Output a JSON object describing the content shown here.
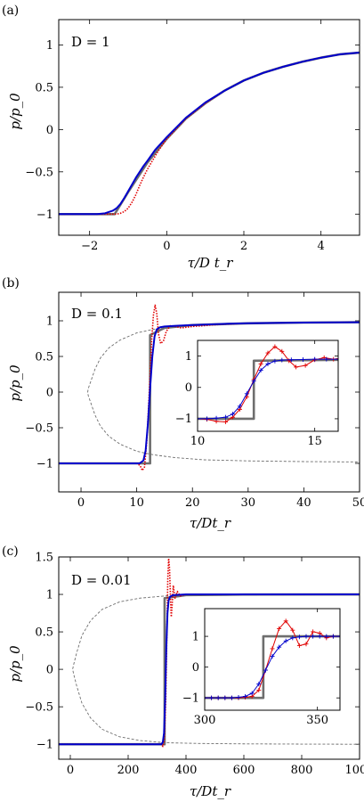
{
  "chart_data": [
    {
      "type": "line",
      "panel_label": "(a)",
      "annotation": "D = 1",
      "xlabel": "τ/D t_r",
      "ylabel": "p/p_0",
      "xlim": [
        -2.8,
        5
      ],
      "ylim": [
        -1.25,
        1.3
      ],
      "xticks": [
        -2,
        0,
        2,
        4
      ],
      "yticks": [
        -1,
        -0.5,
        0,
        0.5,
        1
      ],
      "xtick_labels": [
        "−2",
        "0",
        "2",
        "4"
      ],
      "ytick_labels": [
        "−1",
        "−0.5",
        "0",
        "0.5",
        "1"
      ],
      "grid": false,
      "series": [
        {
          "style": "gray-step",
          "color": "#6e6e6e",
          "x": [
            -2.8,
            -1.35,
            -1.35,
            -1.0,
            -0.5,
            0,
            0.5,
            1,
            1.5,
            2,
            2.5,
            3,
            3.5,
            4,
            4.5,
            5
          ],
          "y": [
            -1,
            -1,
            -1,
            -0.74,
            -0.39,
            -0.11,
            0.13,
            0.31,
            0.46,
            0.58,
            0.67,
            0.74,
            0.8,
            0.85,
            0.89,
            0.91
          ]
        },
        {
          "style": "red-dotted",
          "color": "#e00000",
          "x": [
            -2.8,
            -1.6,
            -1.3,
            -1.2,
            -1.1,
            -1.0,
            -0.9,
            -0.8,
            -0.7,
            -0.6,
            -0.5,
            -0.4,
            -0.2,
            0,
            0.5,
            1,
            1.5,
            2,
            2.5,
            3,
            3.5,
            4,
            4.5,
            5
          ],
          "y": [
            -1,
            -1,
            -1,
            -0.99,
            -0.97,
            -0.93,
            -0.86,
            -0.77,
            -0.66,
            -0.56,
            -0.47,
            -0.39,
            -0.24,
            -0.11,
            0.13,
            0.31,
            0.46,
            0.58,
            0.67,
            0.74,
            0.8,
            0.85,
            0.89,
            0.91
          ]
        },
        {
          "style": "blue-solid",
          "color": "#0000cc",
          "x": [
            -2.8,
            -1.8,
            -1.6,
            -1.4,
            -1.3,
            -1.2,
            -1.1,
            -1.0,
            -0.9,
            -0.8,
            -0.7,
            -0.6,
            -0.5,
            -0.3,
            0,
            0.5,
            1,
            1.5,
            2,
            2.5,
            3,
            3.5,
            4,
            4.5,
            5
          ],
          "y": [
            -1,
            -1,
            -0.99,
            -0.96,
            -0.93,
            -0.88,
            -0.81,
            -0.73,
            -0.65,
            -0.57,
            -0.5,
            -0.43,
            -0.37,
            -0.24,
            -0.09,
            0.14,
            0.32,
            0.46,
            0.58,
            0.67,
            0.74,
            0.8,
            0.85,
            0.89,
            0.91
          ]
        }
      ]
    },
    {
      "type": "line",
      "panel_label": "(b)",
      "annotation": "D = 0.1",
      "xlabel": "τ/Dt_r",
      "ylabel": "p/p_0",
      "xlim": [
        -4,
        50
      ],
      "ylim": [
        -1.4,
        1.4
      ],
      "xticks": [
        0,
        10,
        20,
        30,
        40,
        50
      ],
      "yticks": [
        -1,
        -0.5,
        0,
        0.5,
        1
      ],
      "xtick_labels": [
        "0",
        "10",
        "20",
        "30",
        "40",
        "50"
      ],
      "ytick_labels": [
        "−1",
        "−0.5",
        "0",
        "0.5",
        "1"
      ],
      "grid": false,
      "series": [
        {
          "style": "dashed",
          "color": "#6e6e6e",
          "x": [
            50,
            40,
            30,
            22,
            17,
            13,
            10,
            7,
            5,
            3.5,
            2.5,
            1.8,
            1.3,
            1.2,
            1.3,
            1.8,
            2.5,
            3.5,
            5,
            7,
            10,
            13,
            17,
            22,
            30,
            40,
            50
          ],
          "y": [
            0.98,
            0.975,
            0.965,
            0.95,
            0.92,
            0.88,
            0.83,
            0.73,
            0.62,
            0.48,
            0.32,
            0.16,
            0.05,
            0,
            -0.05,
            -0.16,
            -0.32,
            -0.48,
            -0.62,
            -0.73,
            -0.83,
            -0.88,
            -0.92,
            -0.95,
            -0.965,
            -0.975,
            -0.98
          ]
        },
        {
          "style": "gray-step",
          "color": "#6e6e6e",
          "x": [
            -4,
            12.4,
            12.4,
            15,
            20,
            30,
            40,
            50
          ],
          "y": [
            -1,
            -1,
            0.8,
            0.9,
            0.94,
            0.965,
            0.975,
            0.98
          ]
        },
        {
          "style": "red-dotted",
          "color": "#e00000",
          "x": [
            -4,
            10,
            10.6,
            11.0,
            11.4,
            11.8,
            12.1,
            12.4,
            12.7,
            13.0,
            13.3,
            13.6,
            13.9,
            14.3,
            14.8,
            15.3,
            16.0,
            17,
            18,
            20,
            25,
            30,
            40,
            50
          ],
          "y": [
            -1,
            -1,
            -1.03,
            -1.1,
            -1.05,
            -0.7,
            -0.25,
            0.25,
            0.75,
            1.08,
            1.22,
            1.1,
            0.82,
            0.68,
            0.72,
            0.85,
            0.93,
            0.92,
            0.9,
            0.92,
            0.95,
            0.965,
            0.975,
            0.98
          ]
        },
        {
          "style": "blue-solid",
          "color": "#0000cc",
          "x": [
            -4,
            10.5,
            11.2,
            11.6,
            12.0,
            12.4,
            12.8,
            13.2,
            13.6,
            14.2,
            15,
            17,
            20,
            25,
            30,
            40,
            50
          ],
          "y": [
            -1,
            -1,
            -0.96,
            -0.82,
            -0.45,
            0.05,
            0.5,
            0.78,
            0.88,
            0.91,
            0.92,
            0.93,
            0.94,
            0.955,
            0.965,
            0.975,
            0.98
          ]
        }
      ],
      "inset": {
        "xlim": [
          10,
          16
        ],
        "ylim": [
          -1.4,
          1.5
        ],
        "xticks": [
          10,
          15
        ],
        "yticks": [
          -1,
          0,
          1
        ],
        "xtick_labels": [
          "10",
          "15"
        ],
        "ytick_labels": [
          "−1",
          "0",
          "1"
        ],
        "series": [
          {
            "style": "gray-step",
            "color": "#6e6e6e",
            "x": [
              10,
              12.4,
              12.4,
              16
            ],
            "y": [
              -1,
              -1,
              0.85,
              0.88
            ]
          },
          {
            "style": "red-markers",
            "color": "#e00000",
            "x": [
              10,
              10.4,
              10.8,
              11.2,
              11.5,
              11.8,
              12.1,
              12.4,
              12.7,
              13.0,
              13.3,
              13.6,
              13.9,
              14.2,
              14.6,
              15.0,
              15.4,
              15.8,
              16
            ],
            "y": [
              -1.0,
              -1.02,
              -1.08,
              -1.1,
              -0.95,
              -0.7,
              -0.3,
              0.25,
              0.75,
              1.1,
              1.3,
              1.15,
              0.85,
              0.65,
              0.7,
              0.88,
              0.95,
              0.9,
              0.92
            ]
          },
          {
            "style": "blue-markers",
            "color": "#0000cc",
            "x": [
              10,
              10.4,
              10.8,
              11.2,
              11.5,
              11.8,
              12.1,
              12.4,
              12.7,
              13.0,
              13.3,
              13.6,
              14.0,
              14.5,
              15.0,
              15.5,
              16
            ],
            "y": [
              -1.0,
              -1.0,
              -0.98,
              -0.95,
              -0.85,
              -0.6,
              -0.2,
              0.2,
              0.55,
              0.75,
              0.84,
              0.87,
              0.88,
              0.89,
              0.9,
              0.9,
              0.9
            ]
          }
        ]
      }
    },
    {
      "type": "line",
      "panel_label": "(c)",
      "annotation": "D = 0.01",
      "xlabel": "τ/Dt_r",
      "ylabel": "p/p_0",
      "xlim": [
        -40,
        1000
      ],
      "ylim": [
        -1.2,
        1.5
      ],
      "xticks": [
        0,
        200,
        400,
        600,
        800,
        1000
      ],
      "yticks": [
        -1,
        -0.5,
        0,
        0.5,
        1,
        1.5
      ],
      "xtick_labels": [
        "0",
        "200",
        "400",
        "600",
        "800",
        "1000"
      ],
      "ytick_labels": [
        "−1",
        "−0.5",
        "0",
        "0.5",
        "1",
        "1.5"
      ],
      "grid": false,
      "series": [
        {
          "style": "dashed",
          "color": "#6e6e6e",
          "x": [
            1000,
            800,
            600,
            450,
            330,
            240,
            170,
            110,
            70,
            40,
            22,
            12,
            8,
            12,
            22,
            40,
            70,
            110,
            170,
            240,
            330,
            450,
            600,
            800,
            1000
          ],
          "y": [
            1.0,
            0.998,
            0.995,
            0.99,
            0.98,
            0.95,
            0.9,
            0.8,
            0.65,
            0.45,
            0.22,
            0.07,
            0,
            -0.07,
            -0.22,
            -0.45,
            -0.65,
            -0.8,
            -0.9,
            -0.95,
            -0.98,
            -0.99,
            -0.995,
            -0.998,
            -1.0
          ]
        },
        {
          "style": "gray-step",
          "color": "#6e6e6e",
          "x": [
            -40,
            326,
            326,
            400,
            600,
            1000
          ],
          "y": [
            -1,
            -1,
            0.95,
            0.99,
            0.998,
            1.0
          ]
        },
        {
          "style": "red-dotted",
          "color": "#e00000",
          "x": [
            -40,
            315,
            320,
            325,
            330,
            334,
            337,
            340,
            343,
            346,
            349,
            352,
            356,
            362,
            370,
            380,
            400,
            500,
            1000
          ],
          "y": [
            -1,
            -1,
            -1.03,
            -0.95,
            -0.4,
            0.5,
            1.2,
            1.48,
            1.35,
            1.0,
            0.7,
            0.85,
            1.12,
            0.95,
            1.04,
            0.98,
            1.0,
            1.0,
            1.0
          ]
        },
        {
          "style": "blue-solid",
          "color": "#0000cc",
          "x": [
            -40,
            315,
            320,
            324,
            328,
            332,
            336,
            340,
            345,
            355,
            400,
            600,
            1000
          ],
          "y": [
            -1,
            -1,
            -0.97,
            -0.85,
            -0.4,
            0.3,
            0.75,
            0.92,
            0.97,
            0.99,
            1.0,
            1.0,
            1.0
          ]
        }
      ],
      "inset": {
        "xlim": [
          300,
          360
        ],
        "ylim": [
          -1.4,
          1.9
        ],
        "xticks": [
          300,
          350
        ],
        "yticks": [
          -1,
          0,
          1
        ],
        "xtick_labels": [
          "300",
          "350"
        ],
        "ytick_labels": [
          "−1",
          "0",
          "1"
        ],
        "series": [
          {
            "style": "gray-step",
            "color": "#6e6e6e",
            "x": [
              300,
              326,
              326,
              360
            ],
            "y": [
              -1,
              -1,
              1,
              1
            ]
          },
          {
            "style": "red-markers",
            "color": "#e00000",
            "x": [
              300,
              303,
              306,
              309,
              312,
              315,
              318,
              321,
              324,
              327,
              330,
              333,
              336,
              339,
              342,
              345,
              348,
              351,
              354,
              357,
              360
            ],
            "y": [
              -1,
              -1,
              -1,
              -1,
              -1,
              -1.0,
              -0.98,
              -0.95,
              -0.75,
              -0.1,
              0.6,
              1.25,
              1.5,
              1.2,
              0.7,
              0.75,
              1.15,
              1.1,
              0.95,
              1.0,
              1.0
            ]
          },
          {
            "style": "blue-markers",
            "color": "#0000cc",
            "x": [
              300,
              303,
              306,
              309,
              312,
              315,
              318,
              321,
              324,
              327,
              330,
              333,
              336,
              339,
              342,
              345,
              348,
              351,
              354,
              357,
              360
            ],
            "y": [
              -1,
              -1,
              -1,
              -1,
              -1,
              -0.98,
              -0.95,
              -0.85,
              -0.55,
              -0.1,
              0.35,
              0.65,
              0.85,
              0.95,
              0.98,
              1.0,
              1.0,
              1.0,
              1.0,
              1.0,
              1.0
            ]
          }
        ]
      }
    }
  ]
}
